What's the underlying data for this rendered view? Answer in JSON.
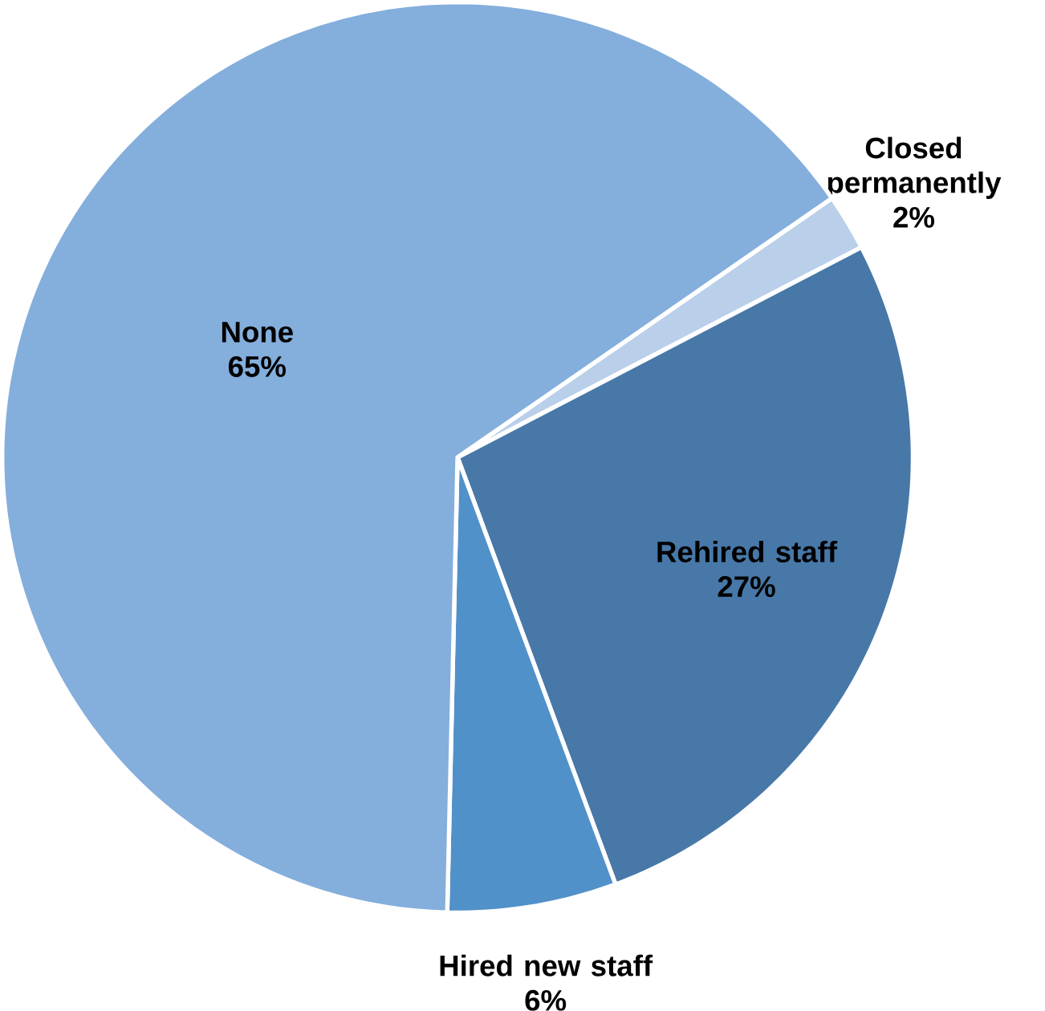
{
  "chart_data": {
    "type": "pie",
    "categories": [
      "Closed permanently",
      "Rehired staff",
      "Hired new staff",
      "None"
    ],
    "values": [
      2,
      27,
      6,
      65
    ],
    "value_labels": [
      "2%",
      "27%",
      "6%",
      "65%"
    ],
    "colors": [
      "#b9cfea",
      "#4778a8",
      "#5191c9",
      "#84aedc"
    ]
  }
}
